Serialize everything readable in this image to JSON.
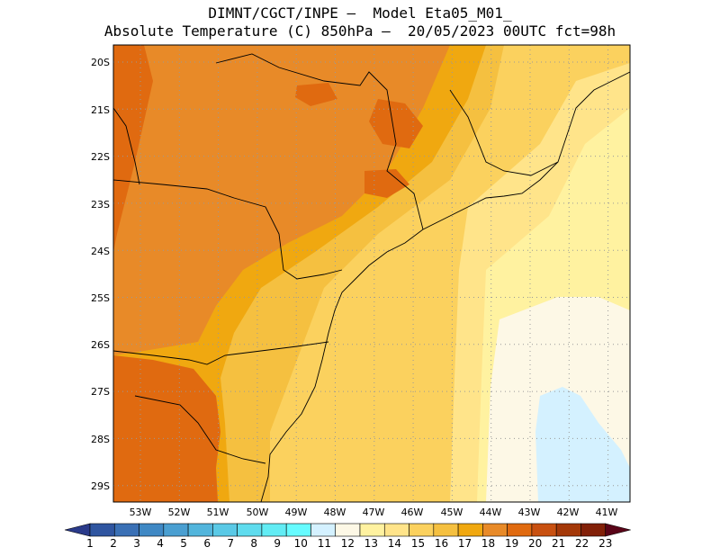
{
  "title": {
    "line1": "DIMNT/CGCT/INPE –  Model Eta05_M01_",
    "line2": "Absolute Temperature (C) 850hPa –  20/05/2023 00UTC fct=98h"
  },
  "map": {
    "lon_range": [
      -53.75,
      -40.5
    ],
    "lat_range": [
      -29.5,
      -19.5
    ],
    "lat_ticks": [
      "20S",
      "21S",
      "22S",
      "23S",
      "24S",
      "25S",
      "26S",
      "27S",
      "28S",
      "29S"
    ],
    "lon_ticks": [
      "53W",
      "52W",
      "51W",
      "50W",
      "49W",
      "48W",
      "47W",
      "46W",
      "45W",
      "44W",
      "43W",
      "42W",
      "41W"
    ],
    "grid": "dotted"
  },
  "colorbar": {
    "labels": [
      "1",
      "2",
      "3",
      "4",
      "5",
      "6",
      "7",
      "8",
      "9",
      "10",
      "11",
      "12",
      "13",
      "14",
      "15",
      "16",
      "17",
      "18",
      "19",
      "20",
      "21",
      "22",
      "23"
    ],
    "colors": [
      "#2a3a8a",
      "#2f55a0",
      "#3a70b5",
      "#3f88c4",
      "#4a9fd1",
      "#52b5dc",
      "#5ac9e6",
      "#5fdcee",
      "#62ecf4",
      "#66fbff",
      "#d4f1ff",
      "#fdf8e6",
      "#fff2a0",
      "#ffe48a",
      "#fbd15e",
      "#f5c040",
      "#f0a810",
      "#e88a28",
      "#e06a10",
      "#c85010",
      "#a43808",
      "#822008",
      "#5a0418"
    ]
  }
}
